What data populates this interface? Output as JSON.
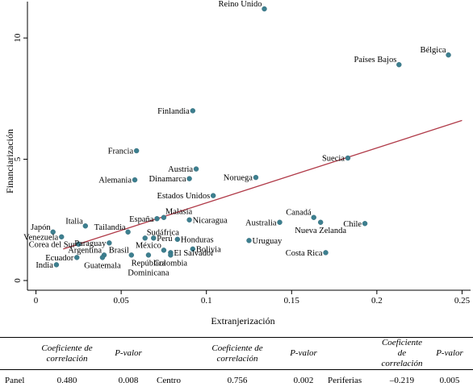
{
  "chart_data": {
    "type": "scatter",
    "xlabel": "Extranjerización",
    "ylabel": "Financiarización",
    "xlim": [
      -0.005,
      0.255
    ],
    "ylim": [
      -0.4,
      11.5
    ],
    "xticks": [
      0,
      0.05,
      0.1,
      0.15,
      0.2,
      0.25
    ],
    "xtick_labels": [
      "0",
      "0.05",
      "0.1",
      "0.15",
      "0.2",
      "0.25"
    ],
    "yticks": [
      0,
      5,
      10
    ],
    "ytick_labels": [
      "0",
      "5",
      "10"
    ],
    "grid": false,
    "legend": "none",
    "colors": {
      "points": "#3d7f8f",
      "fit_line": "#b03a48"
    },
    "fit_line": {
      "x": [
        0.016,
        0.25
      ],
      "y": [
        1.3,
        6.6
      ]
    },
    "points": [
      {
        "label": "Reino Unido",
        "x": 0.134,
        "y": 11.2,
        "pos": "left-up"
      },
      {
        "label": "Bélgica",
        "x": 0.242,
        "y": 9.3,
        "pos": "left-up"
      },
      {
        "label": "Países Bajos",
        "x": 0.213,
        "y": 8.9,
        "pos": "left-up"
      },
      {
        "label": "Finlandia",
        "x": 0.092,
        "y": 7.0,
        "pos": "left"
      },
      {
        "label": "Francia",
        "x": 0.059,
        "y": 5.35,
        "pos": "left"
      },
      {
        "label": "Suecia",
        "x": 0.183,
        "y": 5.05,
        "pos": "left"
      },
      {
        "label": "Austria",
        "x": 0.094,
        "y": 4.6,
        "pos": "left"
      },
      {
        "label": "Alemania",
        "x": 0.058,
        "y": 4.15,
        "pos": "left"
      },
      {
        "label": "Dinamarca",
        "x": 0.09,
        "y": 4.2,
        "pos": "left"
      },
      {
        "label": "Noruega",
        "x": 0.129,
        "y": 4.25,
        "pos": "left"
      },
      {
        "label": "Estados Unidos",
        "x": 0.104,
        "y": 3.5,
        "pos": "left"
      },
      {
        "label": "Malasia",
        "x": 0.075,
        "y": 2.6,
        "pos": "right-up"
      },
      {
        "label": "España",
        "x": 0.071,
        "y": 2.55,
        "pos": "left"
      },
      {
        "label": "Nicaragua",
        "x": 0.09,
        "y": 2.5,
        "pos": "right"
      },
      {
        "label": "Canadá",
        "x": 0.163,
        "y": 2.6,
        "pos": "left-up"
      },
      {
        "label": "Australia",
        "x": 0.143,
        "y": 2.4,
        "pos": "left"
      },
      {
        "label": "Nueva Zelanda",
        "x": 0.167,
        "y": 2.4,
        "pos": "below"
      },
      {
        "label": "Chile",
        "x": 0.193,
        "y": 2.35,
        "pos": "left"
      },
      {
        "label": "Japón",
        "x": 0.01,
        "y": 2.0,
        "pos": "left-up"
      },
      {
        "label": "Italia",
        "x": 0.029,
        "y": 2.25,
        "pos": "left-up"
      },
      {
        "label": "Tailandia",
        "x": 0.054,
        "y": 2.0,
        "pos": "left-up"
      },
      {
        "label": "Sudáfrica",
        "x": 0.064,
        "y": 1.75,
        "pos": "right-up"
      },
      {
        "label": "Venezuela",
        "x": 0.015,
        "y": 1.8,
        "pos": "left"
      },
      {
        "label": "Corea del Sur",
        "x": 0.025,
        "y": 1.5,
        "pos": "left"
      },
      {
        "label": "Paraguay",
        "x": 0.043,
        "y": 1.55,
        "pos": "left"
      },
      {
        "label": "Perú",
        "x": 0.069,
        "y": 1.75,
        "pos": "right"
      },
      {
        "label": "Honduras",
        "x": 0.083,
        "y": 1.7,
        "pos": "right"
      },
      {
        "label": "Uruguay",
        "x": 0.125,
        "y": 1.65,
        "pos": "right"
      },
      {
        "label": "Argentina",
        "x": 0.04,
        "y": 1.05,
        "pos": "left-up"
      },
      {
        "label": "Brasil",
        "x": 0.056,
        "y": 1.05,
        "pos": "left-up"
      },
      {
        "label": "México",
        "x": 0.075,
        "y": 1.25,
        "pos": "left-up"
      },
      {
        "label": "Bolivia",
        "x": 0.092,
        "y": 1.3,
        "pos": "right"
      },
      {
        "label": "El Salvador",
        "x": 0.079,
        "y": 1.15,
        "pos": "right"
      },
      {
        "label": "Ecuador",
        "x": 0.024,
        "y": 0.95,
        "pos": "left"
      },
      {
        "label": "India",
        "x": 0.012,
        "y": 0.65,
        "pos": "left"
      },
      {
        "label": "Guatemala",
        "x": 0.039,
        "y": 0.95,
        "pos": "below"
      },
      {
        "label": "República",
        "x": 0.066,
        "y": 1.05,
        "pos": "below"
      },
      {
        "label": "Colombia",
        "x": 0.079,
        "y": 1.05,
        "pos": "below"
      },
      {
        "label": "Costa Rica",
        "x": 0.17,
        "y": 1.15,
        "pos": "left"
      }
    ],
    "extra_labels": [
      {
        "text": "Dominicana",
        "anchor": "República"
      }
    ]
  },
  "table": {
    "header": {
      "coef_line1": "Coeficiente de",
      "coef_line2": "correlación",
      "pvalue": "P-valor"
    },
    "rows": [
      {
        "group": "Panel",
        "coef": "0.480",
        "p": "0.008"
      },
      {
        "group": "Centro",
        "coef": "0.756",
        "p": "0.002"
      },
      {
        "group": "Periferias",
        "coef": "–0.219",
        "p": "0.005"
      }
    ]
  }
}
